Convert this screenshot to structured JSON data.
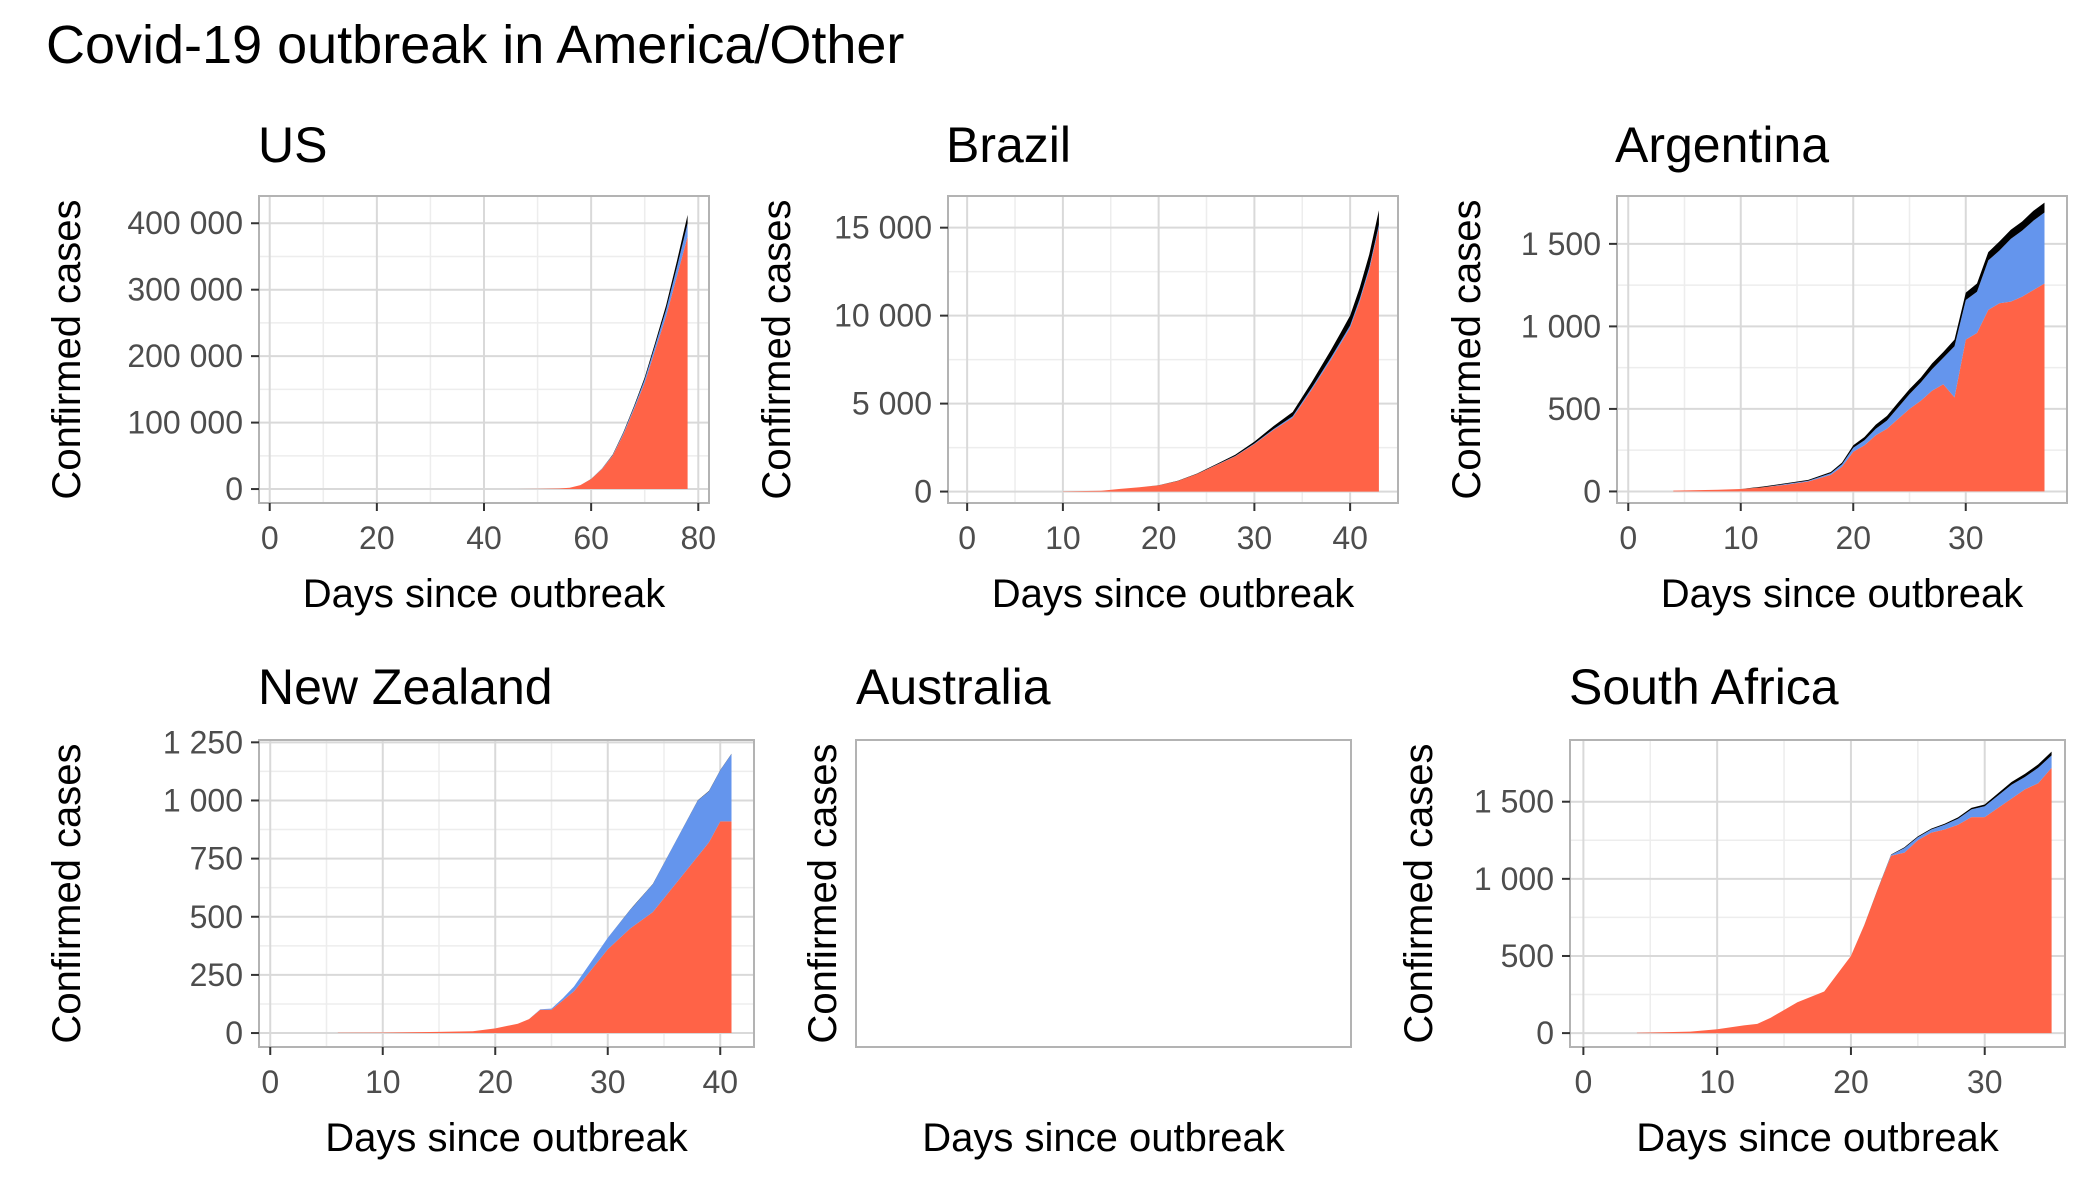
{
  "title": "Covid-19 outbreak in America/Other",
  "colors": {
    "confirmed": "#ff6347",
    "recovered": "#6495ed",
    "deaths": "#000000",
    "grid_major": "#d9d9d9",
    "grid_minor": "#ededed",
    "panel_border": "#b3b3b3"
  },
  "chart_data": [
    {
      "type": "area",
      "title": "US",
      "xlabel": "Days since outbreak",
      "ylabel": "Confirmed cases",
      "xlim": [
        -2,
        82
      ],
      "ylim": [
        -21000,
        441000
      ],
      "x_ticks": [
        0,
        20,
        40,
        60,
        80
      ],
      "x_tick_labels": [
        "0",
        "20",
        "40",
        "60",
        "80"
      ],
      "y_ticks": [
        0,
        100000,
        200000,
        300000,
        400000
      ],
      "y_tick_labels": [
        "0",
        "100 000",
        "200 000",
        "300 000",
        "400 000"
      ],
      "x": [
        46,
        50,
        54,
        56,
        58,
        60,
        62,
        64,
        66,
        68,
        70,
        72,
        74,
        76,
        78
      ],
      "series": [
        {
          "values": [
            0,
            200,
            800,
            2000,
            6000,
            15000,
            30000,
            50000,
            82000,
            120000,
            160000,
            210000,
            260000,
            320000,
            380000
          ]
        },
        {
          "values": [
            0,
            0,
            0,
            0,
            0,
            0,
            500,
            1000,
            2000,
            3000,
            5000,
            7000,
            10000,
            14000,
            20000
          ]
        },
        {
          "values": [
            0,
            0,
            0,
            0,
            0,
            100,
            300,
            700,
            1300,
            2000,
            3000,
            4500,
            6500,
            9000,
            12500
          ]
        }
      ]
    },
    {
      "type": "area",
      "title": "Brazil",
      "xlabel": "Days since outbreak",
      "ylabel": "Confirmed cases",
      "xlim": [
        -2,
        45
      ],
      "ylim": [
        -650,
        16800
      ],
      "x_ticks": [
        0,
        10,
        20,
        30,
        40
      ],
      "x_tick_labels": [
        "0",
        "10",
        "20",
        "30",
        "40"
      ],
      "y_ticks": [
        0,
        5000,
        10000,
        15000
      ],
      "y_tick_labels": [
        "0",
        "5 000",
        "10 000",
        "15 000"
      ],
      "x": [
        10,
        14,
        16,
        18,
        20,
        22,
        24,
        26,
        28,
        30,
        32,
        34,
        36,
        38,
        39,
        40,
        41,
        42,
        43
      ],
      "series": [
        {
          "values": [
            10,
            50,
            150,
            250,
            350,
            600,
            1000,
            1500,
            2000,
            2700,
            3500,
            4200,
            5800,
            7500,
            8400,
            9300,
            10800,
            12600,
            15000
          ]
        },
        {
          "values": [
            0,
            0,
            0,
            0,
            0,
            0,
            0,
            10,
            20,
            30,
            50,
            80,
            100,
            120,
            130,
            140,
            150,
            160,
            170
          ]
        },
        {
          "values": [
            0,
            0,
            0,
            0,
            5,
            10,
            20,
            40,
            70,
            110,
            170,
            240,
            330,
            430,
            490,
            560,
            640,
            730,
            820
          ]
        }
      ]
    },
    {
      "type": "area",
      "title": "Argentina",
      "xlabel": "Days since outbreak",
      "ylabel": "Confirmed cases",
      "xlim": [
        -1,
        39
      ],
      "ylim": [
        -70,
        1790
      ],
      "x_ticks": [
        0,
        10,
        20,
        30
      ],
      "x_tick_labels": [
        "0",
        "10",
        "20",
        "30"
      ],
      "y_ticks": [
        0,
        500,
        1000,
        1500
      ],
      "y_tick_labels": [
        "0",
        "500",
        "1 000",
        "1 500"
      ],
      "x": [
        4,
        8,
        10,
        12,
        14,
        16,
        18,
        19,
        20,
        21,
        22,
        23,
        24,
        25,
        26,
        27,
        28,
        29,
        30,
        31,
        32,
        33,
        34,
        35,
        36,
        37
      ],
      "series": [
        {
          "values": [
            5,
            10,
            15,
            25,
            40,
            60,
            100,
            150,
            240,
            280,
            340,
            380,
            440,
            500,
            550,
            610,
            650,
            570,
            920,
            960,
            1100,
            1140,
            1150,
            1180,
            1220,
            1260
          ]
        },
        {
          "values": [
            0,
            0,
            0,
            0,
            5,
            5,
            10,
            15,
            25,
            30,
            40,
            50,
            70,
            90,
            110,
            130,
            160,
            310,
            240,
            250,
            300,
            320,
            380,
            400,
            420,
            430
          ]
        },
        {
          "values": [
            0,
            0,
            0,
            5,
            5,
            5,
            8,
            10,
            15,
            20,
            25,
            28,
            30,
            30,
            30,
            35,
            35,
            40,
            45,
            50,
            50,
            55,
            55,
            55,
            60,
            60
          ]
        }
      ]
    },
    {
      "type": "area",
      "title": "New Zealand",
      "xlabel": "Days since outbreak",
      "ylabel": "Confirmed cases",
      "xlim": [
        -1,
        43
      ],
      "ylim": [
        -60,
        1260
      ],
      "x_ticks": [
        0,
        10,
        20,
        30,
        40
      ],
      "x_tick_labels": [
        "0",
        "10",
        "20",
        "30",
        "40"
      ],
      "y_ticks": [
        0,
        250,
        500,
        750,
        1000,
        1250
      ],
      "y_tick_labels": [
        "0",
        "250",
        "500",
        "750",
        "1 000",
        "1 250"
      ],
      "x": [
        6,
        10,
        15,
        18,
        20,
        22,
        23,
        24,
        25,
        26,
        27,
        28,
        30,
        32,
        34,
        36,
        38,
        39,
        40,
        41
      ],
      "series": [
        {
          "values": [
            1,
            2,
            5,
            8,
            20,
            40,
            60,
            100,
            100,
            140,
            180,
            240,
            360,
            450,
            520,
            640,
            760,
            820,
            910,
            910
          ]
        },
        {
          "values": [
            0,
            0,
            0,
            0,
            0,
            0,
            0,
            2,
            5,
            10,
            20,
            30,
            50,
            80,
            120,
            180,
            240,
            220,
            220,
            290
          ]
        },
        {
          "values": [
            0,
            0,
            0,
            0,
            0,
            0,
            0,
            0,
            0,
            0,
            0,
            0,
            0,
            1,
            1,
            1,
            1,
            1,
            1,
            1
          ]
        }
      ]
    },
    {
      "type": "area",
      "title": "Australia",
      "xlabel": "Days since outbreak",
      "ylabel": "Confirmed cases",
      "xlim": [
        0,
        1
      ],
      "ylim": [
        0,
        1
      ],
      "x_ticks": [],
      "x_tick_labels": [],
      "y_ticks": [],
      "y_tick_labels": [],
      "x": [],
      "series": []
    },
    {
      "type": "area",
      "title": "South Africa",
      "xlabel": "Days since outbreak",
      "ylabel": "Confirmed cases",
      "xlim": [
        -1,
        36
      ],
      "ylim": [
        -90,
        1900
      ],
      "x_ticks": [
        0,
        10,
        20,
        30
      ],
      "x_tick_labels": [
        "0",
        "10",
        "20",
        "30"
      ],
      "y_ticks": [
        0,
        500,
        1000,
        1500
      ],
      "y_tick_labels": [
        "0",
        "500",
        "1 000",
        "1 500"
      ],
      "x": [
        4,
        8,
        10,
        12,
        13,
        14,
        16,
        18,
        20,
        21,
        22,
        23,
        24,
        25,
        26,
        27,
        28,
        29,
        30,
        31,
        32,
        33,
        34,
        35
      ],
      "series": [
        {
          "values": [
            2,
            10,
            25,
            50,
            60,
            100,
            200,
            270,
            500,
            700,
            930,
            1150,
            1170,
            1250,
            1300,
            1320,
            1350,
            1400,
            1400,
            1460,
            1520,
            1580,
            1620,
            1720
          ]
        },
        {
          "values": [
            0,
            0,
            0,
            0,
            0,
            0,
            0,
            0,
            0,
            0,
            0,
            5,
            30,
            20,
            20,
            30,
            40,
            50,
            70,
            80,
            90,
            80,
            100,
            80
          ]
        },
        {
          "values": [
            0,
            0,
            0,
            0,
            0,
            0,
            0,
            0,
            0,
            1,
            2,
            3,
            5,
            5,
            6,
            7,
            8,
            10,
            12,
            15,
            18,
            20,
            22,
            25
          ]
        }
      ]
    }
  ]
}
